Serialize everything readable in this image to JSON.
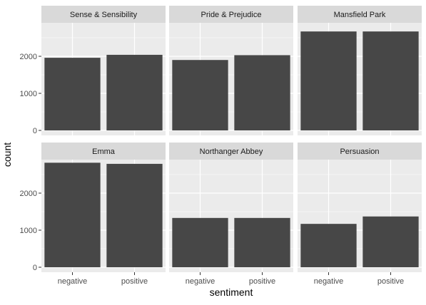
{
  "chart_data": {
    "type": "bar",
    "facet": "grid",
    "xlabel": "sentiment",
    "ylabel": "count",
    "categories": [
      "negative",
      "positive"
    ],
    "ylim": [
      0,
      2900
    ],
    "yticks": [
      0,
      1000,
      2000
    ],
    "y_scale_shared": true,
    "colors": {
      "bar": "#474747",
      "panel_bg": "#ebebeb",
      "strip_bg": "#d9d9d9",
      "grid": "#ffffff"
    },
    "panels": [
      {
        "title": "Sense & Sensibility",
        "values": [
          1960,
          2040
        ]
      },
      {
        "title": "Pride & Prejudice",
        "values": [
          1900,
          2030
        ]
      },
      {
        "title": "Mansfield Park",
        "values": [
          2670,
          2670
        ]
      },
      {
        "title": "Emma",
        "values": [
          2820,
          2790
        ]
      },
      {
        "title": "Northanger Abbey",
        "values": [
          1330,
          1330
        ]
      },
      {
        "title": "Persuasion",
        "values": [
          1170,
          1370
        ]
      }
    ]
  }
}
